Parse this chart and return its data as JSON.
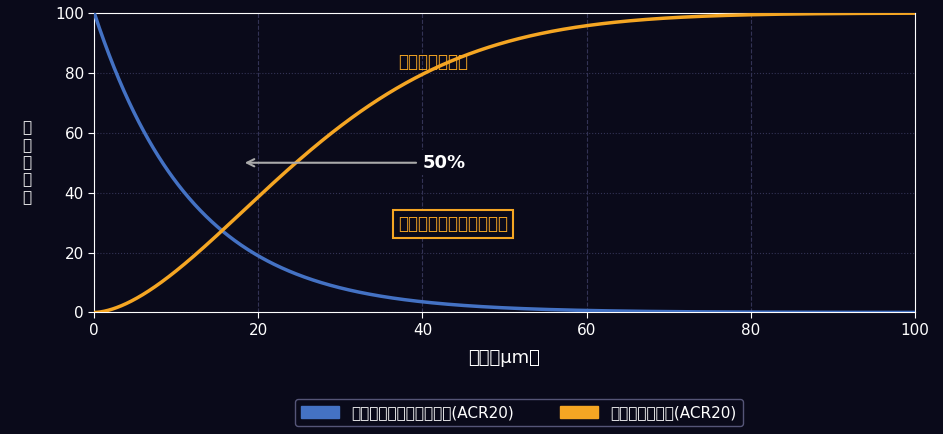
{
  "bg_color": "#0a0a1a",
  "plot_bg_color": "#0a0a1a",
  "blue_color": "#4472c4",
  "orange_color": "#f5a623",
  "grid_color": "#333355",
  "text_color": "#ffffff",
  "ylabel": "割\n合\n（\n％\n）",
  "xlabel": "粒度（μm）",
  "xlim": [
    0,
    100
  ],
  "ylim": [
    0,
    100
  ],
  "xticks": [
    0,
    20,
    40,
    60,
    80,
    100
  ],
  "yticks": [
    0,
    20,
    40,
    60,
    80,
    100
  ],
  "annotation_50_text": "50%",
  "annotation_deposit_text": "落下堆積の粒子",
  "annotation_removed_text": "能被換氣裝置移除的粒子",
  "legend_blue_label": "能被換氣裝置移除的粒子(ACR20)",
  "legend_orange_label": "落下堆積的粒子(ACR20)"
}
